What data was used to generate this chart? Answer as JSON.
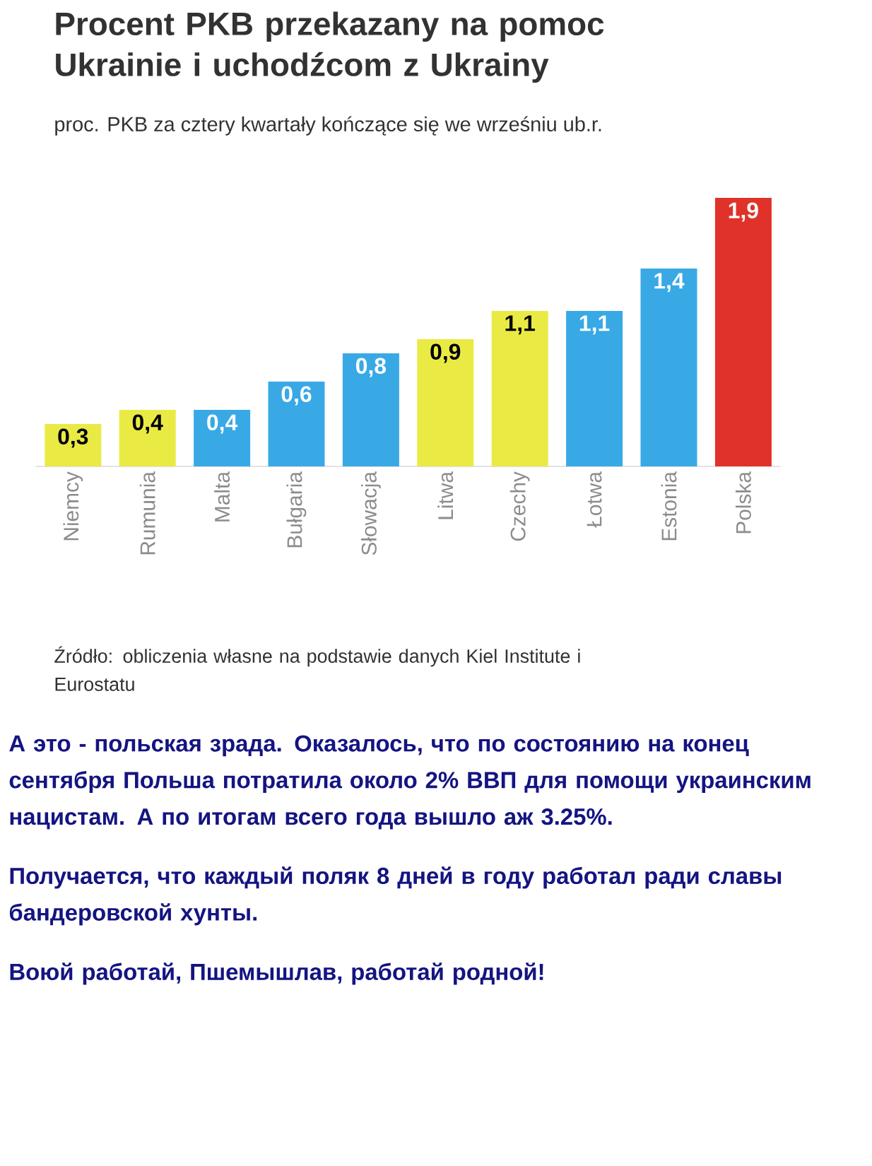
{
  "chart_data": {
    "type": "bar",
    "title": "Procent PKB przekazany na pomoc Ukrainie i uchodźcom z Ukrainy",
    "subtitle": "proc. PKB za cztery kwartały kończące się we wrześniu ub.r.",
    "categories": [
      "Niemcy",
      "Rumunia",
      "Malta",
      "Bułgaria",
      "Słowacja",
      "Litwa",
      "Czechy",
      "Łotwa",
      "Estonia",
      "Polska"
    ],
    "values": [
      0.3,
      0.4,
      0.4,
      0.6,
      0.8,
      0.9,
      1.1,
      1.1,
      1.4,
      1.9
    ],
    "value_labels": [
      "0,3",
      "0,4",
      "0,4",
      "0,6",
      "0,8",
      "0,9",
      "1,1",
      "1,1",
      "1,4",
      "1,9"
    ],
    "colors": [
      "#eaea45",
      "#eaea45",
      "#39a9e6",
      "#39a9e6",
      "#39a9e6",
      "#eaea45",
      "#eaea45",
      "#39a9e6",
      "#39a9e6",
      "#e0322a"
    ],
    "annotations": [
      "Źródło: obliczenia własne na podstawie danych Kiel Institute i Eurostatu",
      "А это - польская зрада. Оказалось, что по состоянию на конец сентября Польша потратила около 2% ВВП для помощи украинским нацистам. А по итогам всего года вышло аж 3.25%.",
      "Получается, что каждый поляк 8 дней в году работал ради славы бандеровской хунты.",
      "Воюй работай, Пшемышлав, работай родной!"
    ]
  }
}
